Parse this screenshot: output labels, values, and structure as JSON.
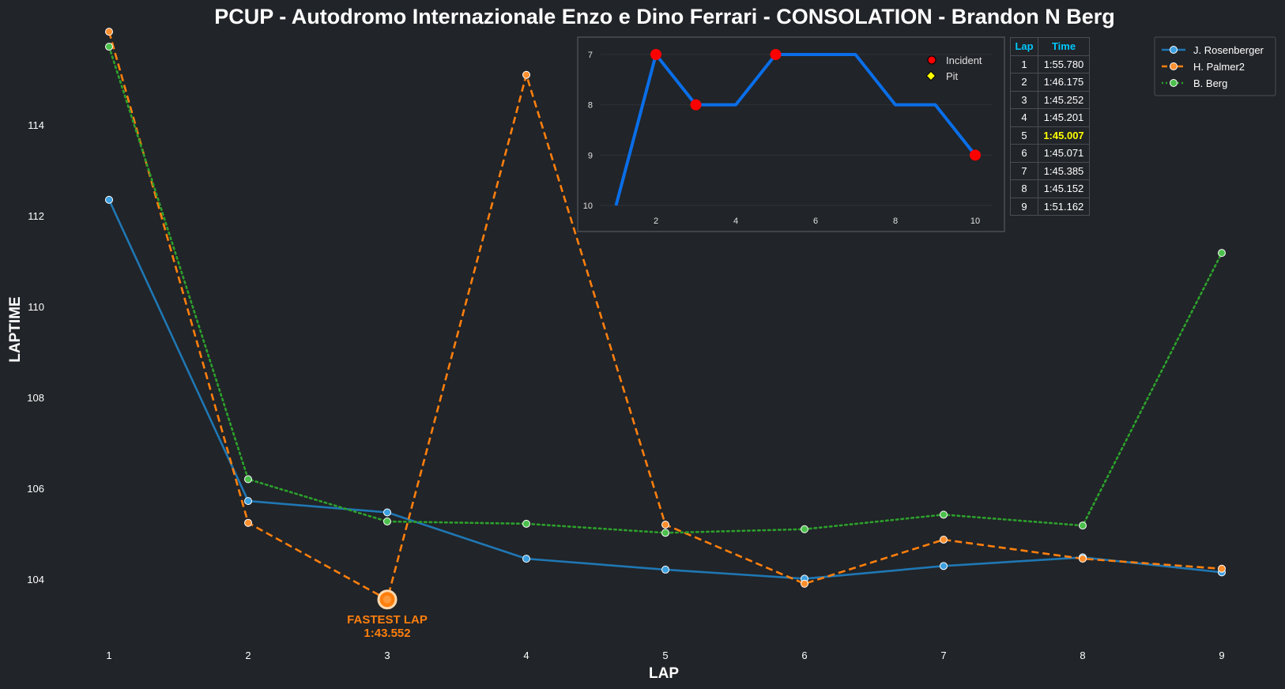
{
  "chart_data": [
    {
      "type": "line",
      "title": "PCUP - Autodromo Internazionale Enzo e Dino Ferrari - CONSOLATION - Brandon N Berg",
      "xlabel": "LAP",
      "ylabel": "LAPTIME",
      "x": [
        1,
        2,
        3,
        4,
        5,
        6,
        7,
        8,
        9
      ],
      "xticks": [
        "1",
        "2",
        "3",
        "4",
        "5",
        "6",
        "7",
        "8",
        "9"
      ],
      "yticks": [
        "104",
        "106",
        "108",
        "110",
        "112",
        "114"
      ],
      "ylim": [
        102.2,
        116.2
      ],
      "grid": false,
      "legend_position": "top-right",
      "series": [
        {
          "name": "J. Rosenberger",
          "color": "#1f77b4",
          "marker_fill": "#3da0e0",
          "style": "solid",
          "values": [
            112.35,
            105.72,
            105.47,
            104.45,
            104.21,
            104.01,
            104.29,
            104.48,
            104.15
          ]
        },
        {
          "name": "H. Palmer2",
          "color": "#ff7f0e",
          "marker_fill": "#ff8f2e",
          "style": "dashed",
          "values": [
            116.05,
            105.24,
            103.552,
            115.1,
            105.2,
            103.9,
            104.87,
            104.45,
            104.23
          ]
        },
        {
          "name": "B. Berg",
          "color": "#2ca02c",
          "marker_fill": "#4cc04c",
          "style": "dotted",
          "values": [
            115.72,
            106.2,
            105.27,
            105.22,
            105.02,
            105.1,
            105.42,
            105.18,
            111.18
          ]
        }
      ],
      "annotation": {
        "label": "FASTEST LAP",
        "value": "1:43.552",
        "series": "H. Palmer2",
        "x": 3,
        "y": 103.552
      }
    },
    {
      "type": "line",
      "title": "",
      "x": [
        1,
        2,
        3,
        4,
        5,
        6,
        7,
        8,
        9,
        10
      ],
      "values": [
        10,
        7,
        8,
        8,
        7,
        7,
        7,
        8,
        8,
        9
      ],
      "inverted_y": true,
      "ylim": [
        10,
        7
      ],
      "xticks": [
        "2",
        "4",
        "6",
        "8",
        "10"
      ],
      "yticks": [
        "7",
        "8",
        "9",
        "10"
      ],
      "line_color": "#0a6ee8",
      "incidents": [
        2,
        3,
        5,
        10
      ],
      "pits": [],
      "legend": [
        {
          "name": "Incident",
          "color": "#ff0000"
        },
        {
          "name": "Pit",
          "color": "#ffff00"
        }
      ]
    }
  ],
  "lap_table": {
    "headers": [
      "Lap",
      "Time"
    ],
    "rows": [
      [
        "1",
        "1:55.780"
      ],
      [
        "2",
        "1:46.175"
      ],
      [
        "3",
        "1:45.252"
      ],
      [
        "4",
        "1:45.201"
      ],
      [
        "5",
        "1:45.007"
      ],
      [
        "6",
        "1:45.071"
      ],
      [
        "7",
        "1:45.385"
      ],
      [
        "8",
        "1:45.152"
      ],
      [
        "9",
        "1:51.162"
      ]
    ],
    "best_lap": "5",
    "header_color": "#00c8ff",
    "best_color": "#ffff00"
  }
}
